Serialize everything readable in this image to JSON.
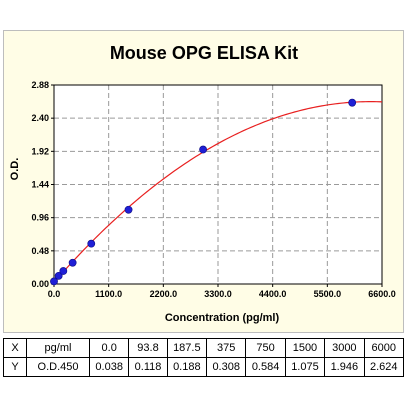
{
  "chart_data": {
    "type": "scatter",
    "title": "Mouse OPG ELISA Kit",
    "xlabel": "Concentration (pg/ml)",
    "ylabel": "O.D.",
    "xlim": [
      0,
      6600
    ],
    "ylim": [
      0,
      2.88
    ],
    "x_ticks": [
      "0.0",
      "1100.0",
      "2200.0",
      "3300.0",
      "4400.0",
      "5500.0",
      "6600.0"
    ],
    "y_ticks": [
      "0.00",
      "0.48",
      "0.96",
      "1.44",
      "1.92",
      "2.40",
      "2.88"
    ],
    "grid": true,
    "points": {
      "x": [
        0,
        93.8,
        187.5,
        375,
        750,
        1500,
        3000,
        6000
      ],
      "y": [
        0.038,
        0.118,
        0.188,
        0.308,
        0.584,
        1.075,
        1.946,
        2.624
      ]
    },
    "fit_curve": true,
    "colors": {
      "points": "#1f1fd6",
      "curve": "#e82020",
      "grid": "#9a9a9a"
    }
  },
  "table": {
    "rows": [
      {
        "label": "X",
        "unit": "pg/ml",
        "values": [
          "0.0",
          "93.8",
          "187.5",
          "375",
          "750",
          "1500",
          "3000",
          "6000"
        ]
      },
      {
        "label": "Y",
        "unit": "O.D.450",
        "values": [
          "0.038",
          "0.118",
          "0.188",
          "0.308",
          "0.584",
          "1.075",
          "1.946",
          "2.624"
        ]
      }
    ]
  }
}
